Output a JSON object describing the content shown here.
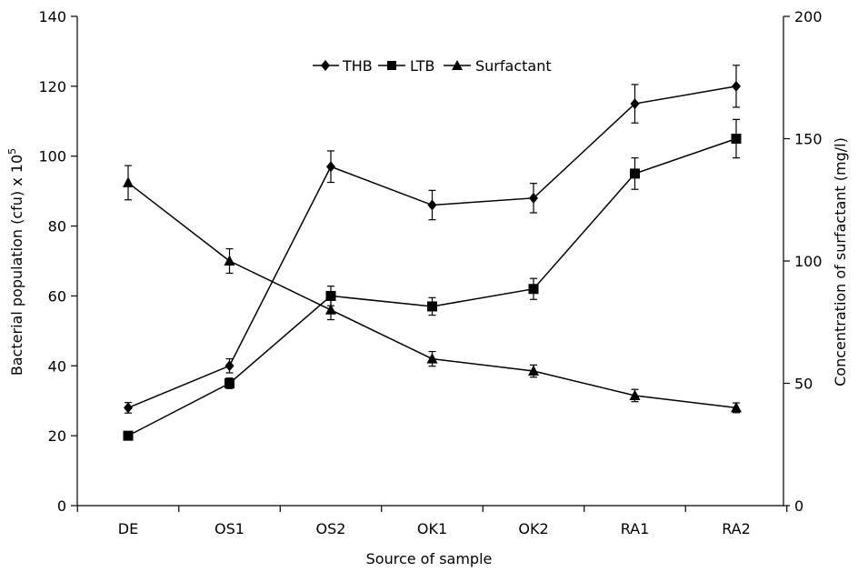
{
  "chart_data": {
    "type": "line",
    "categories": [
      "DE",
      "OS1",
      "OS2",
      "OK1",
      "OK2",
      "RA1",
      "RA2"
    ],
    "xlabel": "Source of sample",
    "ylabel": "Bacterial population (cfu) x 10",
    "ylabel_superscript": "5",
    "y2label": "Concentration of surfactant (mg/l)",
    "ylim": [
      0,
      140
    ],
    "y2lim": [
      0,
      200
    ],
    "yticks": [
      "0",
      "20",
      "40",
      "60",
      "80",
      "100",
      "120",
      "140"
    ],
    "y2ticks": [
      "0",
      "50",
      "100",
      "150",
      "200"
    ],
    "legend_position": "top-center",
    "series": [
      {
        "name": "THB",
        "marker": "diamond",
        "axis": "left",
        "values": [
          28,
          40,
          97,
          86,
          88,
          115,
          120
        ],
        "errors": [
          1.5,
          2,
          4.5,
          4.2,
          4.2,
          5.5,
          6
        ]
      },
      {
        "name": "LTB",
        "marker": "square",
        "axis": "left",
        "values": [
          20,
          35,
          60,
          57,
          62,
          95,
          105
        ],
        "errors": [
          0,
          1.5,
          2.8,
          2.5,
          3,
          4.5,
          5.5
        ]
      },
      {
        "name": "Surfactant",
        "marker": "triangle",
        "axis": "right",
        "values": [
          132,
          100,
          80,
          60,
          55,
          45,
          40
        ],
        "errors": [
          7,
          5,
          4,
          3,
          2.5,
          2.5,
          2
        ]
      }
    ]
  }
}
